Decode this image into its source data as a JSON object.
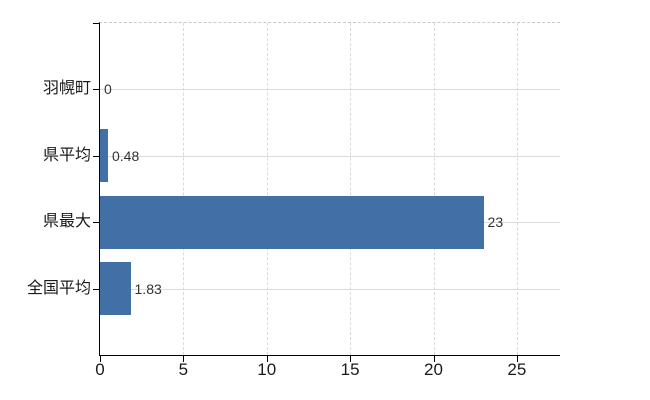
{
  "chart_data": {
    "type": "bar",
    "orientation": "horizontal",
    "title": "",
    "categories": [
      "羽幌町",
      "県平均",
      "県最大",
      "全国平均"
    ],
    "values": [
      0,
      0.48,
      23,
      1.83
    ],
    "value_labels": [
      "0",
      "0.48",
      "23",
      "1.83"
    ],
    "x_ticks": [
      0,
      5,
      10,
      15,
      20,
      25
    ],
    "x_tick_labels": [
      "0",
      "5",
      "10",
      "15",
      "20",
      "25"
    ],
    "xlim": [
      0,
      27.6
    ],
    "grid": true,
    "legend": false,
    "colors": {
      "bar": "#426fa6",
      "axis": "#000000",
      "h_grid": "#dcdcdc",
      "v_grid": "#d7dbd7",
      "top_border": "#c9c9c9",
      "category_label": "#1a1a1a",
      "tick_label": "#1a1a1a",
      "value_label": "#333333"
    }
  }
}
